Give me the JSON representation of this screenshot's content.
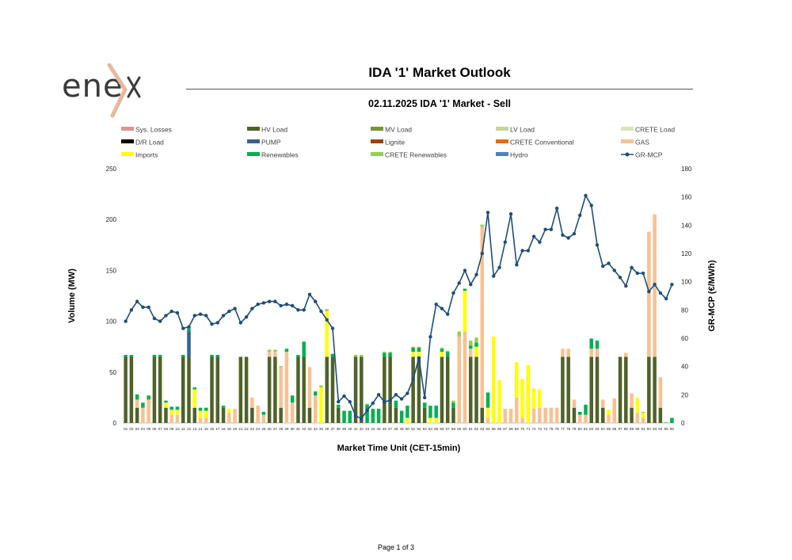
{
  "header": {
    "logo_text": "ene",
    "title": "IDA '1' Market Outlook"
  },
  "footer": {
    "page": "Page 1 of 3"
  },
  "colors": {
    "Sys. Losses": "#d99694",
    "HV Load": "#4f6228",
    "MV Load": "#77933c",
    "LV Load": "#c3d69b",
    "CRETE Load": "#d7e4bd",
    "D/R Load": "#000000",
    "PUMP": "#366092",
    "Lignite": "#974706",
    "CRETE Conventional": "#e46c0a",
    "GAS": "#fac090",
    "Imports": "#ffff00",
    "Renewables": "#00b050",
    "CRETE Renewables": "#92d050",
    "Hydro": "#4f81bd",
    "GR-MCP": "#1f4e79",
    "logo_accent": "#e6b89c"
  },
  "chart_data": {
    "type": "bar",
    "title": "02.11.2025  IDA '1' Market - Sell",
    "xlabel": "Market Time Unit (CET-15min)",
    "ylabel": "Volume (MW)",
    "y2label": "GR-MCP (€/MWh)",
    "ylim": [
      0,
      250
    ],
    "y2lim": [
      0,
      180
    ],
    "yticks": [
      0,
      50,
      100,
      150,
      200,
      250
    ],
    "y2ticks": [
      0,
      20,
      40,
      60,
      80,
      100,
      120,
      140,
      160,
      180
    ],
    "legend_position": "top",
    "legend": [
      "Sys. Losses",
      "HV Load",
      "MV Load",
      "LV Load",
      "CRETE Load",
      "D/R Load",
      "PUMP",
      "Lignite",
      "CRETE Conventional",
      "GAS",
      "Imports",
      "Renewables",
      "CRETE Renewables",
      "Hydro",
      "GR-MCP"
    ],
    "categories": [
      "01",
      "02",
      "03",
      "04",
      "05",
      "06",
      "07",
      "08",
      "09",
      "10",
      "11",
      "12",
      "13",
      "14",
      "15",
      "16",
      "17",
      "18",
      "19",
      "20",
      "21",
      "22",
      "23",
      "24",
      "25",
      "26",
      "27",
      "28",
      "29",
      "30",
      "31",
      "32",
      "33",
      "34",
      "35",
      "36",
      "37",
      "38",
      "39",
      "40",
      "41",
      "42",
      "43",
      "44",
      "45",
      "46",
      "47",
      "48",
      "49",
      "50",
      "51",
      "52",
      "53",
      "54",
      "55",
      "56",
      "57",
      "58",
      "59",
      "60",
      "61",
      "62",
      "63",
      "64",
      "65",
      "66",
      "67",
      "68",
      "69",
      "70",
      "71",
      "72",
      "73",
      "74",
      "75",
      "76",
      "77",
      "78",
      "79",
      "80",
      "81",
      "82",
      "83",
      "84",
      "85",
      "86",
      "87",
      "88",
      "89",
      "90",
      "91",
      "92",
      "93",
      "94",
      "95",
      "96"
    ],
    "series": [
      {
        "name": "HV Load",
        "values": [
          65,
          65,
          15,
          0,
          0,
          65,
          65,
          15,
          0,
          0,
          65,
          65,
          15,
          0,
          0,
          65,
          65,
          15,
          0,
          0,
          65,
          65,
          15,
          0,
          0,
          65,
          65,
          15,
          0,
          0,
          65,
          65,
          15,
          0,
          0,
          65,
          65,
          15,
          0,
          0,
          65,
          65,
          0,
          0,
          0,
          65,
          65,
          15,
          0,
          0,
          65,
          65,
          15,
          0,
          0,
          65,
          65,
          15,
          0,
          0,
          65,
          65,
          15,
          0,
          0,
          0,
          0,
          0,
          0,
          0,
          0,
          0,
          0,
          0,
          0,
          0,
          65,
          65,
          15,
          0,
          0,
          65,
          65,
          15,
          0,
          0,
          65,
          65,
          15,
          0,
          0,
          65,
          65,
          15,
          0,
          0
        ]
      },
      {
        "name": "PUMP",
        "values": [
          0,
          0,
          0,
          0,
          0,
          0,
          0,
          0,
          0,
          0,
          0,
          25,
          0,
          0,
          0,
          0,
          0,
          0,
          0,
          0,
          0,
          0,
          0,
          0,
          0,
          0,
          0,
          0,
          0,
          0,
          0,
          0,
          0,
          0,
          0,
          0,
          0,
          0,
          0,
          0,
          0,
          0,
          0,
          0,
          0,
          0,
          0,
          0,
          0,
          0,
          0,
          0,
          0,
          0,
          0,
          0,
          0,
          0,
          0,
          0,
          0,
          0,
          0,
          0,
          0,
          0,
          0,
          0,
          0,
          0,
          0,
          0,
          0,
          0,
          0,
          0,
          0,
          0,
          0,
          0,
          0,
          0,
          0,
          0,
          0,
          0,
          0,
          0,
          0,
          0,
          0,
          0,
          0,
          0,
          0,
          0
        ]
      },
      {
        "name": "Sys. Losses",
        "values": [
          0,
          0,
          0,
          0,
          0,
          0,
          0,
          0,
          0,
          0,
          0,
          0,
          0,
          0,
          0,
          0,
          0,
          0,
          0,
          0,
          0,
          0,
          0,
          0,
          0,
          0,
          0,
          0,
          0,
          0,
          0,
          0,
          0,
          0,
          0,
          0,
          0,
          0,
          0,
          0,
          0,
          0,
          0,
          0,
          0,
          0,
          0,
          0,
          0,
          0,
          0,
          0,
          0,
          0,
          0,
          0,
          0,
          0,
          0,
          0,
          0,
          0,
          0,
          0,
          0,
          0,
          0,
          0,
          0,
          0,
          0,
          0,
          0,
          0,
          0,
          0,
          0,
          0,
          0,
          0,
          0,
          0,
          0,
          0,
          0,
          0,
          0,
          0,
          0,
          0,
          0,
          0,
          0,
          0,
          0,
          0
        ]
      },
      {
        "name": "GAS",
        "values": [
          0,
          0,
          8,
          15,
          23,
          0,
          0,
          0,
          8,
          8,
          0,
          0,
          0,
          5,
          5,
          0,
          0,
          0,
          10,
          14,
          0,
          0,
          10,
          17,
          8,
          5,
          5,
          40,
          70,
          20,
          0,
          0,
          40,
          27,
          0,
          0,
          0,
          0,
          0,
          0,
          0,
          0,
          0,
          0,
          0,
          0,
          0,
          0,
          0,
          0,
          0,
          0,
          0,
          0,
          0,
          0,
          0,
          0,
          85,
          90,
          8,
          0,
          178,
          5,
          0,
          0,
          14,
          14,
          25,
          5,
          0,
          14,
          15,
          15,
          15,
          15,
          8,
          8,
          8,
          8,
          8,
          8,
          8,
          8,
          8,
          24,
          0,
          4,
          14,
          10,
          5,
          123,
          140,
          30,
          0,
          0
        ]
      },
      {
        "name": "Imports",
        "values": [
          0,
          0,
          0,
          0,
          0,
          0,
          0,
          5,
          5,
          5,
          0,
          0,
          18,
          7,
          7,
          0,
          0,
          0,
          4,
          0,
          0,
          0,
          0,
          0,
          0,
          0,
          0,
          0,
          0,
          0,
          0,
          0,
          0,
          0,
          35,
          45,
          0,
          0,
          0,
          0,
          0,
          0,
          0,
          0,
          0,
          0,
          0,
          0,
          0,
          5,
          5,
          5,
          0,
          5,
          5,
          5,
          0,
          0,
          0,
          40,
          0,
          10,
          0,
          10,
          85,
          42,
          0,
          0,
          35,
          38,
          57,
          20,
          18,
          0,
          0,
          0,
          0,
          0,
          0,
          0,
          0,
          0,
          0,
          0,
          5,
          0,
          0,
          0,
          0,
          15,
          5,
          0,
          0,
          0,
          0,
          0
        ]
      },
      {
        "name": "Renewables",
        "values": [
          2,
          2,
          5,
          5,
          4,
          2,
          2,
          2,
          3,
          3,
          2,
          3,
          2,
          3,
          3,
          2,
          2,
          2,
          0,
          0,
          0,
          0,
          0,
          0,
          3,
          0,
          0,
          0,
          3,
          7,
          2,
          15,
          0,
          4,
          0,
          0,
          3,
          3,
          12,
          12,
          0,
          0,
          18,
          14,
          14,
          4,
          4,
          7,
          12,
          12,
          4,
          4,
          5,
          12,
          12,
          3,
          5,
          5,
          0,
          2,
          3,
          4,
          0,
          15,
          0,
          0,
          0,
          0,
          0,
          0,
          0,
          0,
          0,
          0,
          0,
          0,
          0,
          0,
          0,
          3,
          10,
          10,
          8,
          0,
          0,
          0,
          0,
          0,
          0,
          0,
          0,
          0,
          0,
          0,
          0,
          5
        ]
      },
      {
        "name": "CRETE Renewables",
        "values": [
          0,
          0,
          0,
          0,
          0,
          0,
          0,
          0,
          0,
          0,
          0,
          0,
          0,
          0,
          0,
          0,
          0,
          0,
          0,
          0,
          0,
          0,
          0,
          0,
          0,
          2,
          2,
          1,
          0,
          0,
          0,
          0,
          0,
          0,
          2,
          2,
          0,
          0,
          0,
          0,
          2,
          2,
          1,
          0,
          0,
          1,
          1,
          0,
          0,
          0,
          1,
          1,
          0,
          0,
          0,
          1,
          1,
          2,
          5,
          0,
          5,
          5,
          2,
          0,
          0,
          0,
          0,
          0,
          0,
          0,
          0,
          0,
          0,
          0,
          0,
          0,
          0,
          0,
          0,
          0,
          0,
          0,
          0,
          0,
          0,
          0,
          0,
          0,
          0,
          0,
          1,
          0,
          0,
          0,
          1,
          0
        ]
      }
    ],
    "line": {
      "name": "GR-MCP",
      "axis": "right",
      "values": [
        72,
        80,
        86,
        82,
        82,
        74,
        72,
        76,
        79,
        78,
        67,
        68,
        76,
        77,
        76,
        70,
        71,
        76,
        79,
        81,
        71,
        75,
        81,
        84,
        85,
        86,
        86,
        83,
        84,
        83,
        80,
        80,
        91,
        86,
        79,
        73,
        67,
        15,
        19,
        15,
        5,
        3,
        9,
        14,
        20,
        15,
        16,
        20,
        17,
        21,
        31,
        46,
        18,
        61,
        84,
        81,
        77,
        92,
        99,
        108,
        98,
        105,
        120,
        149,
        104,
        110,
        128,
        148,
        112,
        122,
        122,
        132,
        128,
        137,
        137,
        152,
        133,
        131,
        134,
        147,
        161,
        154,
        126,
        111,
        113,
        108,
        103,
        97,
        110,
        106,
        106,
        93,
        98,
        92,
        88,
        98
      ]
    }
  }
}
